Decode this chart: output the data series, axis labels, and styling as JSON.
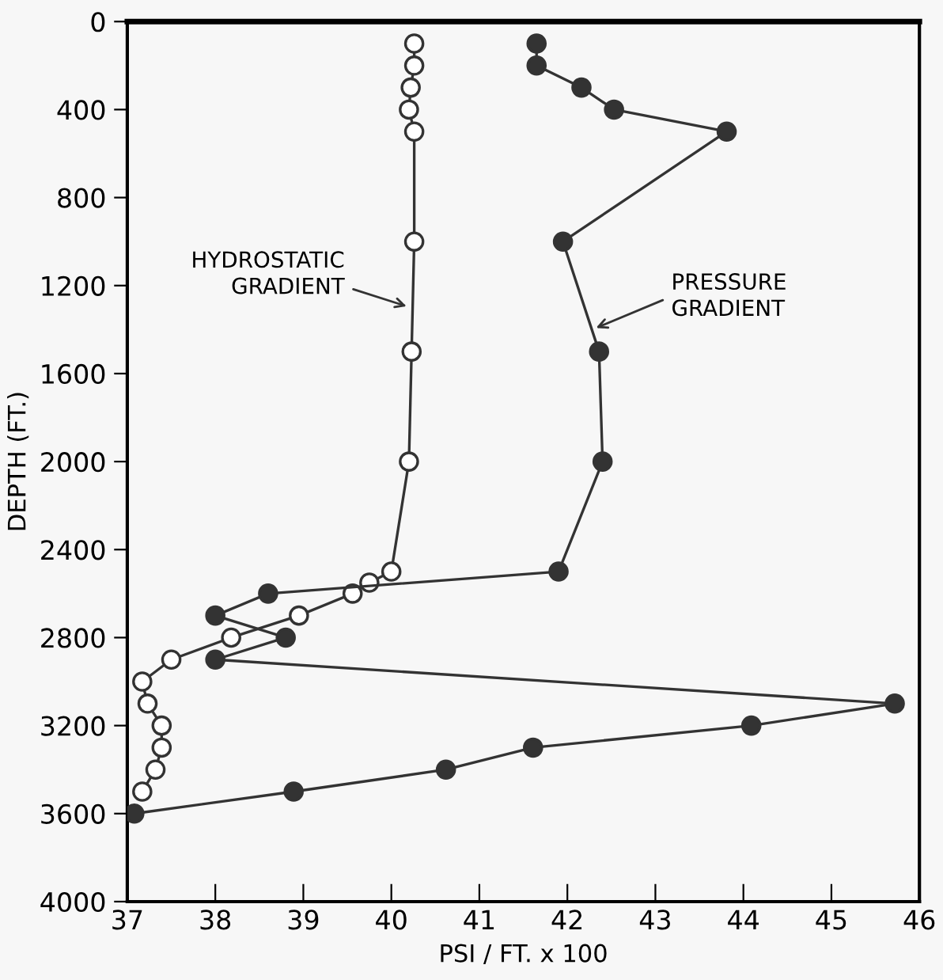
{
  "chart_data": {
    "type": "line",
    "xlabel": "PSI / FT. x 100",
    "ylabel": "DEPTH (FT.)",
    "xlim": [
      37,
      46
    ],
    "xticks": [
      37,
      38,
      39,
      40,
      41,
      42,
      43,
      44,
      45,
      46
    ],
    "ylim": [
      4000,
      0
    ],
    "yticks": [
      0,
      400,
      800,
      1200,
      1600,
      2000,
      2400,
      2800,
      3200,
      3600,
      4000
    ],
    "grid": false,
    "legend": false,
    "marker": "circle",
    "line_style": "solid",
    "series": [
      {
        "color": "#333333",
        "colors": [
          "#ffffff",
          "#ffffff",
          "#ffffff",
          "#ffffff",
          "#ffffff",
          "#ffffff",
          "#ffffff",
          "#ffffff",
          "#ffffff",
          "#ffffff",
          "#ffffff",
          "#ffffff",
          "#ffffff",
          "#ffffff",
          "#ffffff",
          "#ffffff",
          "#ffffff",
          "#ffffff",
          "#ffffff",
          "#ffffff"
        ],
        "x": [
          40.26,
          40.26,
          40.22,
          40.2,
          40.26,
          40.26,
          40.23,
          40.2,
          40.0,
          39.75,
          39.56,
          38.95,
          38.18,
          37.5,
          37.17,
          37.23,
          37.39,
          37.39,
          37.32,
          37.17
        ],
        "values": [
          100,
          200,
          300,
          400,
          500,
          1000,
          1500,
          2000,
          2500,
          2550,
          2600,
          2700,
          2800,
          2900,
          3000,
          3100,
          3200,
          3300,
          3400,
          3500
        ]
      },
      {
        "color": "#333333",
        "x": [
          41.65,
          41.65,
          42.16,
          42.53,
          43.81,
          41.95,
          42.36,
          42.4,
          41.9,
          38.6,
          38.0,
          38.8,
          38.0,
          45.72,
          44.09,
          41.61,
          40.62,
          38.89,
          37.08
        ],
        "values": [
          100,
          200,
          300,
          400,
          500,
          1000,
          1500,
          2000,
          2500,
          2600,
          2700,
          2800,
          2900,
          3100,
          3200,
          3300,
          3400,
          3500,
          3600
        ]
      }
    ],
    "annotations": [
      {
        "text": "HYDROSTATIC\nGRADIENT",
        "x": 40.22,
        "y": 1300
      },
      {
        "text": "PRESSURE\nGRADIENT",
        "x": 42.28,
        "y": 1400
      }
    ]
  }
}
